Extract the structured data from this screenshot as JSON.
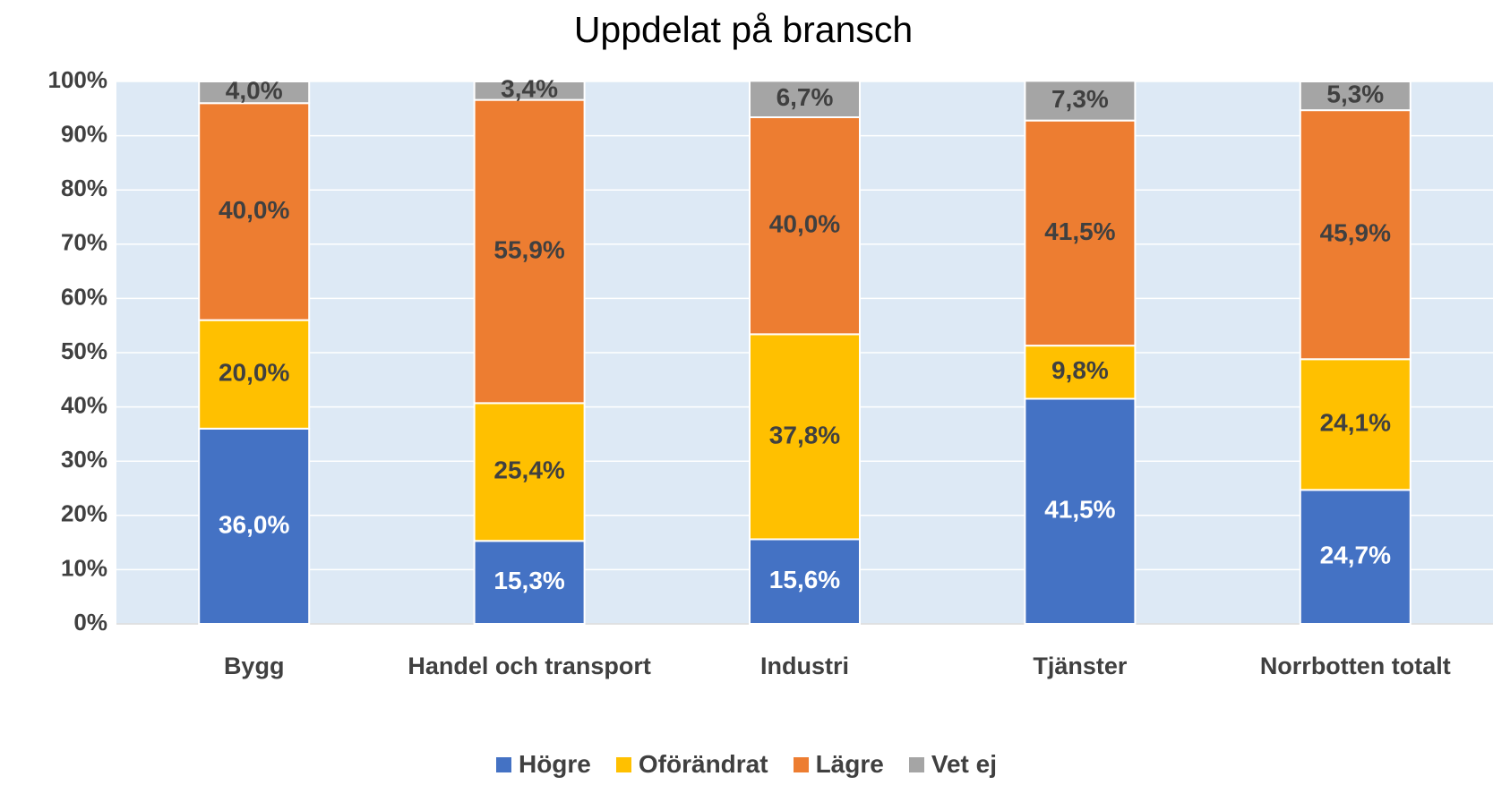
{
  "chart_data": {
    "type": "stacked_bar",
    "title": "Uppdelat på bransch",
    "categories": [
      "Bygg",
      "Handel och transport",
      "Industri",
      "Tjänster",
      "Norrbotten totalt"
    ],
    "series": [
      {
        "name": "Högre",
        "color": "#4472c4",
        "values": [
          36.0,
          15.3,
          15.6,
          41.5,
          24.7
        ],
        "value_labels": [
          "36,0%",
          "15,3%",
          "15,6%",
          "41,5%",
          "24,7%"
        ]
      },
      {
        "name": "Oförändrat",
        "color": "#ffc000",
        "values": [
          20.0,
          25.4,
          37.8,
          9.8,
          24.1
        ],
        "value_labels": [
          "20,0%",
          "25,4%",
          "37,8%",
          "9,8%",
          "24,1%"
        ]
      },
      {
        "name": "Lägre",
        "color": "#ed7d31",
        "values": [
          40.0,
          55.9,
          40.0,
          41.5,
          45.9
        ],
        "value_labels": [
          "40,0%",
          "55,9%",
          "40,0%",
          "41,5%",
          "45,9%"
        ]
      },
      {
        "name": "Vet ej",
        "color": "#a5a5a5",
        "values": [
          4.0,
          3.4,
          6.7,
          7.3,
          5.3
        ],
        "value_labels": [
          "4,0%",
          "3,4%",
          "6,7%",
          "7,3%",
          "5,3%"
        ]
      }
    ],
    "ylim": [
      0,
      100
    ],
    "yticks": [
      {
        "value": 0,
        "label": "0%"
      },
      {
        "value": 10,
        "label": "10%"
      },
      {
        "value": 20,
        "label": "20%"
      },
      {
        "value": 30,
        "label": "30%"
      },
      {
        "value": 40,
        "label": "40%"
      },
      {
        "value": 50,
        "label": "50%"
      },
      {
        "value": 60,
        "label": "60%"
      },
      {
        "value": 70,
        "label": "70%"
      },
      {
        "value": 80,
        "label": "80%"
      },
      {
        "value": 90,
        "label": "90%"
      },
      {
        "value": 100,
        "label": "100%"
      }
    ],
    "grid": true,
    "legend": "bottom"
  }
}
